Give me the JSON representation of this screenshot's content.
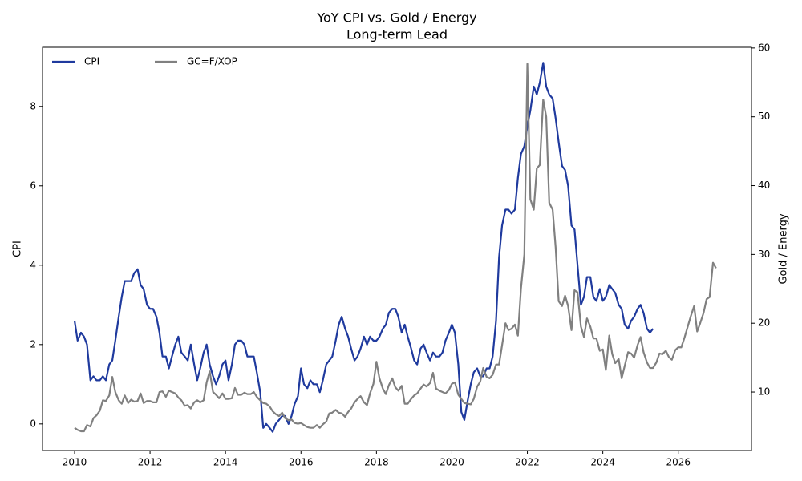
{
  "chart_data": {
    "type": "line",
    "title": "YoY CPI vs. Gold / Energy",
    "subtitle": "Long-term Lead",
    "y_label": "CPI",
    "y2_label": "Gold / Energy",
    "xlim": [
      2009.15,
      2027.94
    ],
    "xticks": [
      2010,
      2012,
      2014,
      2016,
      2018,
      2020,
      2022,
      2024,
      2026
    ],
    "ylim": [
      -0.67,
      9.49
    ],
    "yticks": [
      0,
      2,
      4,
      6,
      8
    ],
    "y2lim": [
      1.5,
      60.1
    ],
    "y2ticks": [
      10,
      20,
      30,
      40,
      50,
      60
    ],
    "grid": false,
    "legend": "upper-left",
    "series": [
      {
        "name": "CPI",
        "color": "#1f3a9e",
        "axis": "y",
        "x": [
          2010,
          2010.08,
          2010.17,
          2010.25,
          2010.33,
          2010.42,
          2010.5,
          2010.58,
          2010.67,
          2010.75,
          2010.83,
          2010.92,
          2011,
          2011.08,
          2011.17,
          2011.25,
          2011.33,
          2011.42,
          2011.5,
          2011.58,
          2011.67,
          2011.75,
          2011.83,
          2011.92,
          2012,
          2012.08,
          2012.17,
          2012.25,
          2012.33,
          2012.42,
          2012.5,
          2012.58,
          2012.67,
          2012.75,
          2012.83,
          2012.92,
          2013,
          2013.08,
          2013.17,
          2013.25,
          2013.33,
          2013.42,
          2013.5,
          2013.58,
          2013.67,
          2013.75,
          2013.83,
          2013.92,
          2014,
          2014.08,
          2014.17,
          2014.25,
          2014.33,
          2014.42,
          2014.5,
          2014.58,
          2014.67,
          2014.75,
          2014.83,
          2014.92,
          2015,
          2015.08,
          2015.17,
          2015.25,
          2015.33,
          2015.42,
          2015.5,
          2015.58,
          2015.67,
          2015.75,
          2015.83,
          2015.92,
          2016,
          2016.08,
          2016.17,
          2016.25,
          2016.33,
          2016.42,
          2016.5,
          2016.58,
          2016.67,
          2016.75,
          2016.83,
          2016.92,
          2017,
          2017.08,
          2017.17,
          2017.25,
          2017.33,
          2017.42,
          2017.5,
          2017.58,
          2017.67,
          2017.75,
          2017.83,
          2017.92,
          2018,
          2018.08,
          2018.17,
          2018.25,
          2018.33,
          2018.42,
          2018.5,
          2018.58,
          2018.67,
          2018.75,
          2018.83,
          2018.92,
          2019,
          2019.08,
          2019.17,
          2019.25,
          2019.33,
          2019.42,
          2019.5,
          2019.58,
          2019.67,
          2019.75,
          2019.83,
          2019.92,
          2020,
          2020.08,
          2020.17,
          2020.25,
          2020.33,
          2020.42,
          2020.5,
          2020.58,
          2020.67,
          2020.75,
          2020.83,
          2020.92,
          2021,
          2021.08,
          2021.17,
          2021.25,
          2021.33,
          2021.42,
          2021.5,
          2021.58,
          2021.67,
          2021.75,
          2021.83,
          2021.92,
          2022,
          2022.08,
          2022.17,
          2022.25,
          2022.33,
          2022.42,
          2022.5,
          2022.58,
          2022.67,
          2022.75,
          2022.83,
          2022.92,
          2023,
          2023.08,
          2023.17,
          2023.25,
          2023.33,
          2023.42,
          2023.5,
          2023.58,
          2023.67,
          2023.75,
          2023.83,
          2023.92,
          2024,
          2024.08,
          2024.17,
          2024.25,
          2024.33,
          2024.42,
          2024.5,
          2024.58,
          2024.67,
          2024.75,
          2024.83,
          2024.92,
          2025,
          2025.08,
          2025.17,
          2025.25,
          2025.33
        ],
        "values": [
          2.6,
          2.1,
          2.3,
          2.2,
          2.0,
          1.1,
          1.2,
          1.1,
          1.1,
          1.2,
          1.1,
          1.5,
          1.6,
          2.1,
          2.7,
          3.2,
          3.6,
          3.6,
          3.6,
          3.8,
          3.9,
          3.5,
          3.4,
          3.0,
          2.9,
          2.9,
          2.7,
          2.3,
          1.7,
          1.7,
          1.4,
          1.7,
          2.0,
          2.2,
          1.8,
          1.7,
          1.6,
          2.0,
          1.5,
          1.1,
          1.4,
          1.8,
          2.0,
          1.5,
          1.2,
          1.0,
          1.2,
          1.5,
          1.6,
          1.1,
          1.5,
          2.0,
          2.1,
          2.1,
          2.0,
          1.7,
          1.7,
          1.7,
          1.3,
          0.8,
          -0.1,
          0.0,
          -0.1,
          -0.2,
          0.0,
          0.1,
          0.2,
          0.2,
          0.0,
          0.2,
          0.5,
          0.7,
          1.4,
          1.0,
          0.9,
          1.1,
          1.0,
          1.0,
          0.8,
          1.1,
          1.5,
          1.6,
          1.7,
          2.1,
          2.5,
          2.7,
          2.4,
          2.2,
          1.9,
          1.6,
          1.7,
          1.9,
          2.2,
          2.0,
          2.2,
          2.1,
          2.1,
          2.2,
          2.4,
          2.5,
          2.8,
          2.9,
          2.9,
          2.7,
          2.3,
          2.5,
          2.2,
          1.9,
          1.6,
          1.5,
          1.9,
          2.0,
          1.8,
          1.6,
          1.8,
          1.7,
          1.7,
          1.8,
          2.1,
          2.3,
          2.5,
          2.3,
          1.5,
          0.3,
          0.1,
          0.6,
          1.0,
          1.3,
          1.4,
          1.2,
          1.2,
          1.4,
          1.4,
          1.7,
          2.6,
          4.2,
          5.0,
          5.4,
          5.4,
          5.3,
          5.4,
          6.2,
          6.8,
          7.0,
          7.5,
          7.9,
          8.5,
          8.3,
          8.6,
          9.1,
          8.5,
          8.3,
          8.2,
          7.7,
          7.1,
          6.5,
          6.4,
          6.0,
          5.0,
          4.9,
          4.0,
          3.0,
          3.2,
          3.7,
          3.7,
          3.2,
          3.1,
          3.4,
          3.1,
          3.2,
          3.5,
          3.4,
          3.3,
          3.0,
          2.9,
          2.5,
          2.4,
          2.6,
          2.7,
          2.9,
          3.0,
          2.8,
          2.4,
          2.3,
          2.4
        ]
      },
      {
        "name": "GC=F/XOP",
        "color": "#808080",
        "axis": "y2",
        "x": [
          2010,
          2010.08,
          2010.17,
          2010.25,
          2010.33,
          2010.42,
          2010.5,
          2010.58,
          2010.67,
          2010.75,
          2010.83,
          2010.92,
          2011,
          2011.08,
          2011.17,
          2011.25,
          2011.33,
          2011.42,
          2011.5,
          2011.58,
          2011.67,
          2011.75,
          2011.83,
          2011.92,
          2012,
          2012.08,
          2012.17,
          2012.25,
          2012.33,
          2012.42,
          2012.5,
          2012.58,
          2012.67,
          2012.75,
          2012.83,
          2012.92,
          2013,
          2013.08,
          2013.17,
          2013.25,
          2013.33,
          2013.42,
          2013.5,
          2013.58,
          2013.67,
          2013.75,
          2013.83,
          2013.92,
          2014,
          2014.08,
          2014.17,
          2014.25,
          2014.33,
          2014.42,
          2014.5,
          2014.58,
          2014.67,
          2014.75,
          2014.83,
          2014.92,
          2015,
          2015.08,
          2015.17,
          2015.25,
          2015.33,
          2015.42,
          2015.5,
          2015.58,
          2015.67,
          2015.75,
          2015.83,
          2015.92,
          2016,
          2016.08,
          2016.17,
          2016.25,
          2016.33,
          2016.42,
          2016.5,
          2016.58,
          2016.67,
          2016.75,
          2016.83,
          2016.92,
          2017,
          2017.08,
          2017.17,
          2017.25,
          2017.33,
          2017.42,
          2017.5,
          2017.58,
          2017.67,
          2017.75,
          2017.83,
          2017.92,
          2018,
          2018.08,
          2018.17,
          2018.25,
          2018.33,
          2018.42,
          2018.5,
          2018.58,
          2018.67,
          2018.75,
          2018.83,
          2018.92,
          2019,
          2019.08,
          2019.17,
          2019.25,
          2019.33,
          2019.42,
          2019.5,
          2019.58,
          2019.67,
          2019.75,
          2019.83,
          2019.92,
          2020,
          2020.08,
          2020.17,
          2020.25,
          2020.33,
          2020.42,
          2020.5,
          2020.58,
          2020.67,
          2020.75,
          2020.83,
          2020.92,
          2021,
          2021.08,
          2021.17,
          2021.25,
          2021.33,
          2021.42,
          2021.5,
          2021.58,
          2021.67,
          2021.75,
          2021.83,
          2021.92,
          2022,
          2022.08,
          2022.17,
          2022.25,
          2022.33,
          2022.42,
          2022.5,
          2022.58,
          2022.67,
          2022.75,
          2022.83,
          2022.92,
          2023,
          2023.08,
          2023.17,
          2023.25,
          2023.33,
          2023.42,
          2023.5,
          2023.58,
          2023.67,
          2023.75,
          2023.83,
          2023.92,
          2024,
          2024.08,
          2024.17,
          2024.25,
          2024.33,
          2024.42,
          2024.5,
          2024.58,
          2024.67,
          2024.75,
          2024.83,
          2024.92,
          2025,
          2025.08,
          2025.17,
          2025.25,
          2025.33,
          2025.42,
          2025.5,
          2025.58,
          2025.67,
          2025.75,
          2025.83,
          2025.92,
          2026,
          2026.08,
          2026.17,
          2026.25,
          2026.33,
          2026.42,
          2026.5,
          2026.58,
          2026.67,
          2026.75,
          2026.83,
          2026.92,
          2027
        ],
        "values": [
          4.8,
          4.5,
          4.3,
          4.3,
          5.2,
          5.0,
          6.2,
          6.6,
          7.3,
          8.8,
          8.7,
          9.5,
          12.2,
          10.0,
          8.8,
          8.3,
          9.5,
          8.4,
          8.9,
          8.6,
          8.7,
          9.8,
          8.4,
          8.7,
          8.7,
          8.5,
          8.5,
          10.0,
          10.1,
          9.3,
          10.2,
          10.0,
          9.8,
          9.2,
          8.8,
          8.0,
          8.1,
          7.6,
          8.5,
          8.8,
          8.5,
          8.8,
          11.4,
          13.0,
          10.0,
          9.6,
          9.1,
          9.8,
          9.0,
          9.0,
          9.1,
          10.6,
          9.6,
          9.6,
          9.9,
          9.7,
          9.7,
          10.0,
          9.3,
          8.8,
          8.4,
          8.3,
          7.9,
          7.2,
          6.8,
          6.5,
          7.0,
          6.2,
          5.9,
          6.0,
          5.5,
          5.4,
          5.5,
          5.2,
          4.9,
          4.8,
          4.8,
          5.2,
          4.8,
          5.3,
          5.7,
          6.9,
          7.0,
          7.4,
          7.0,
          6.9,
          6.4,
          7.1,
          7.6,
          8.5,
          9.0,
          9.4,
          8.5,
          8.1,
          9.8,
          11.2,
          14.4,
          12.0,
          10.5,
          9.7,
          11.0,
          12.0,
          10.7,
          10.2,
          10.9,
          8.3,
          8.3,
          9.0,
          9.5,
          9.8,
          10.5,
          11.1,
          10.8,
          11.3,
          12.8,
          10.5,
          10.2,
          10.0,
          9.8,
          10.3,
          11.2,
          11.4,
          9.6,
          9.0,
          8.4,
          8.3,
          8.2,
          9.0,
          10.8,
          11.5,
          13.5,
          12.2,
          12.0,
          12.5,
          14.0,
          14.0,
          16.8,
          20.0,
          19.0,
          19.2,
          19.8,
          18.2,
          25.0,
          30.0,
          57.7,
          38.0,
          36.5,
          42.5,
          43.0,
          52.5,
          50.0,
          37.5,
          36.5,
          31.0,
          23.2,
          22.5,
          24.0,
          22.5,
          19.0,
          24.8,
          24.5,
          19.5,
          18.0,
          20.7,
          19.5,
          17.8,
          17.8,
          16.0,
          16.2,
          13.2,
          18.2,
          15.5,
          14.2,
          14.8,
          12.0,
          13.8,
          15.8,
          15.6,
          15.0,
          16.8,
          18.0,
          15.8,
          14.3,
          13.5,
          13.5,
          14.3,
          15.6,
          15.5,
          16.0,
          15.1,
          14.7,
          16.1,
          16.5,
          16.5,
          18.0,
          19.5,
          21.0,
          22.5,
          18.8,
          20.0,
          21.5,
          23.5,
          23.8,
          28.8,
          28.0
        ]
      }
    ]
  }
}
